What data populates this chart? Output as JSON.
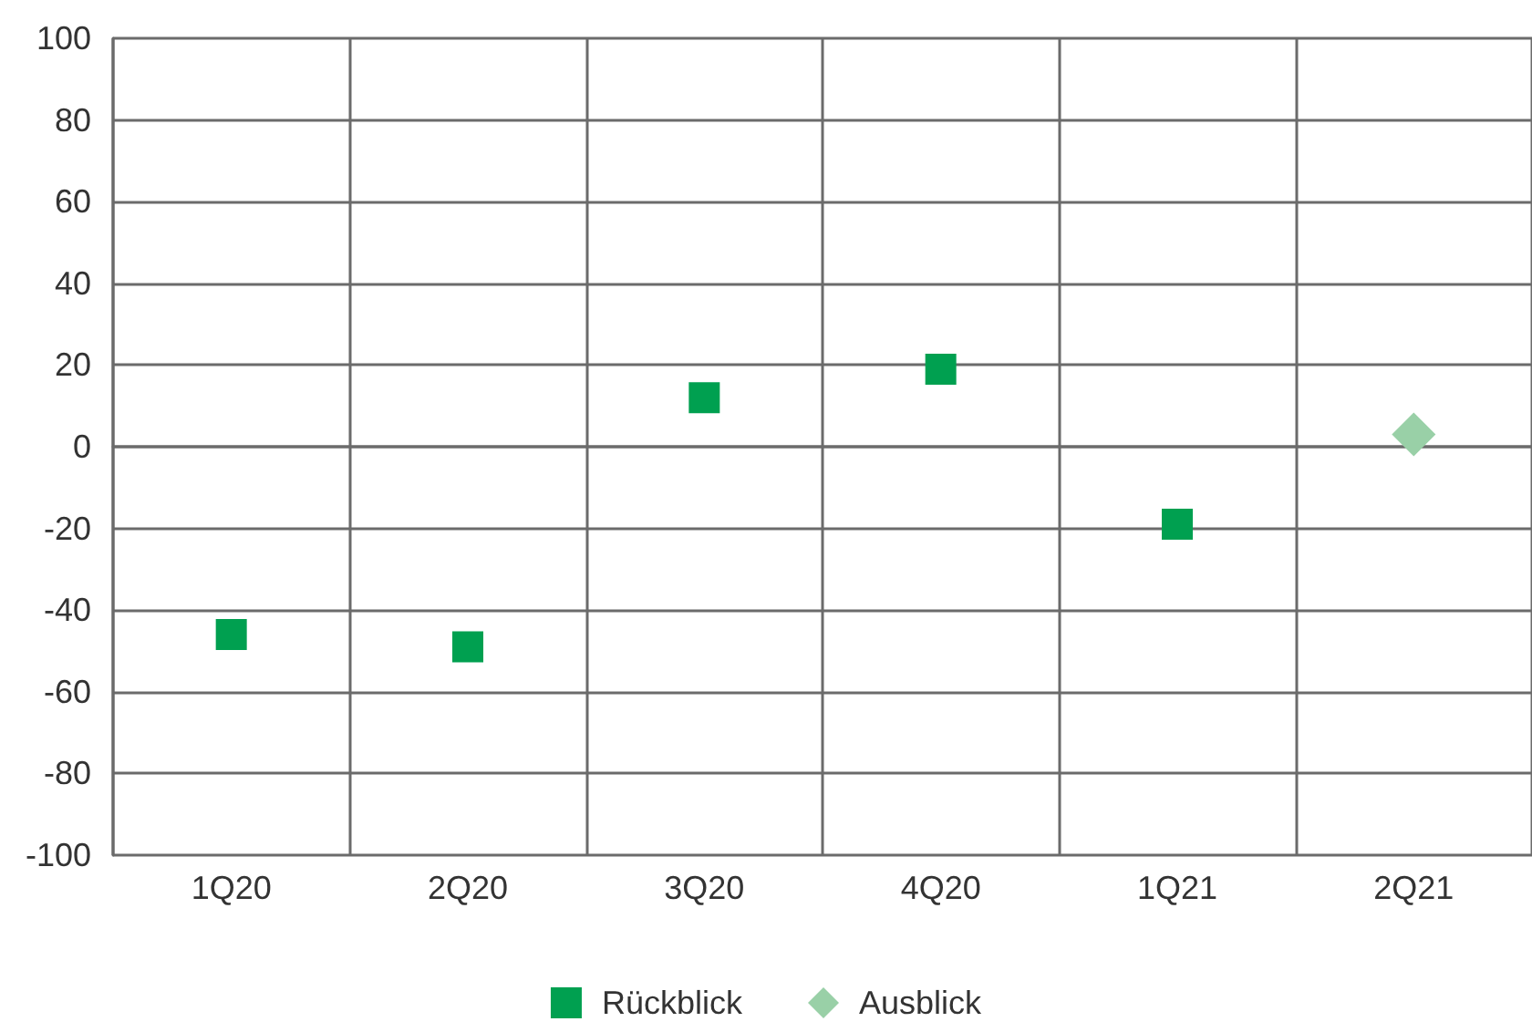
{
  "chart_data": {
    "type": "scatter",
    "categories": [
      "1Q20",
      "2Q20",
      "3Q20",
      "4Q20",
      "1Q21",
      "2Q21"
    ],
    "series": [
      {
        "name": "Rückblick",
        "color": "#00a050",
        "marker": "square",
        "values": [
          -46,
          -49,
          12,
          19,
          -19,
          null
        ]
      },
      {
        "name": "Ausblick",
        "color": "#99d0a7",
        "marker": "diamond",
        "values": [
          null,
          null,
          null,
          null,
          null,
          3
        ]
      }
    ],
    "ylim": [
      -100,
      100
    ],
    "yticks": [
      -100,
      -80,
      -60,
      -40,
      -20,
      0,
      20,
      40,
      60,
      80,
      100
    ],
    "grid": true,
    "legend": "bottom"
  }
}
